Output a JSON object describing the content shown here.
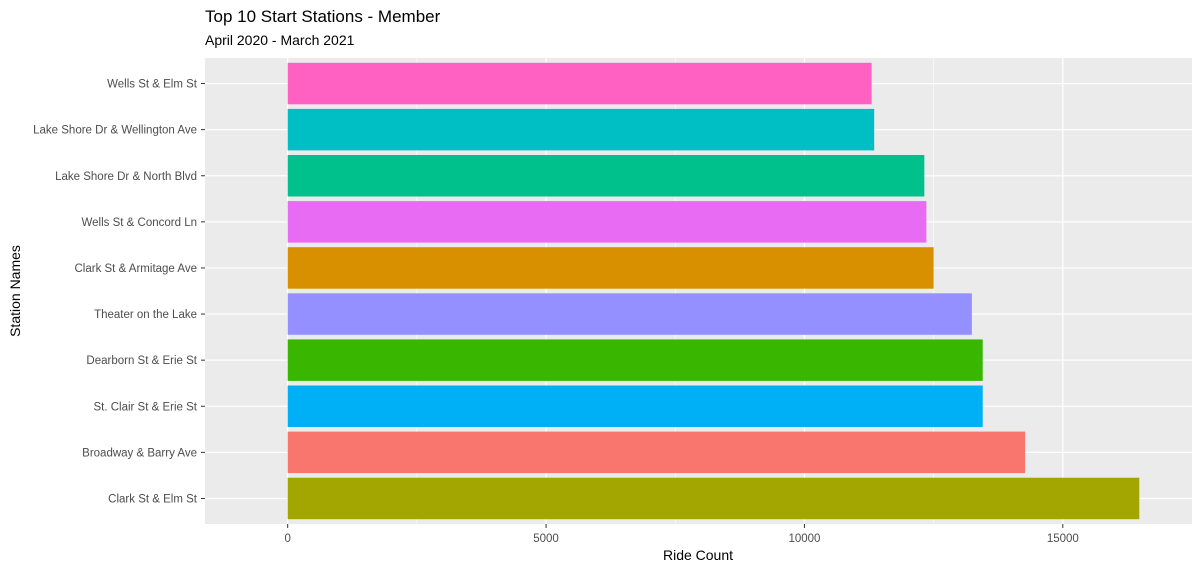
{
  "chart_data": {
    "type": "bar",
    "orientation": "horizontal",
    "title": "Top 10 Start Stations - Member",
    "subtitle": "April 2020 - March 2021",
    "xlabel": "Ride Count",
    "ylabel": "Station Names",
    "xlim": [
      -1600,
      17500
    ],
    "x_ticks": [
      0,
      5000,
      10000,
      15000
    ],
    "x_tick_labels": [
      "0",
      "5000",
      "10000",
      "15000"
    ],
    "grid": true,
    "legend": "none",
    "categories": [
      "Wells St & Elm St",
      "Lake Shore Dr & Wellington Ave",
      "Lake Shore Dr & North Blvd",
      "Wells St & Concord Ln",
      "Clark St & Armitage Ave",
      "Theater on the Lake",
      "Dearborn St & Erie St",
      "St. Clair St & Erie St",
      "Broadway & Barry Ave",
      "Clark St & Elm St"
    ],
    "values": [
      11300,
      11350,
      12320,
      12360,
      12500,
      13240,
      13450,
      13450,
      14270,
      16480
    ],
    "colors": [
      "#FF61C3",
      "#00BFC4",
      "#00C08B",
      "#E76BF3",
      "#D89000",
      "#9590FF",
      "#39B600",
      "#00B0F6",
      "#F8766D",
      "#A3A500"
    ]
  }
}
